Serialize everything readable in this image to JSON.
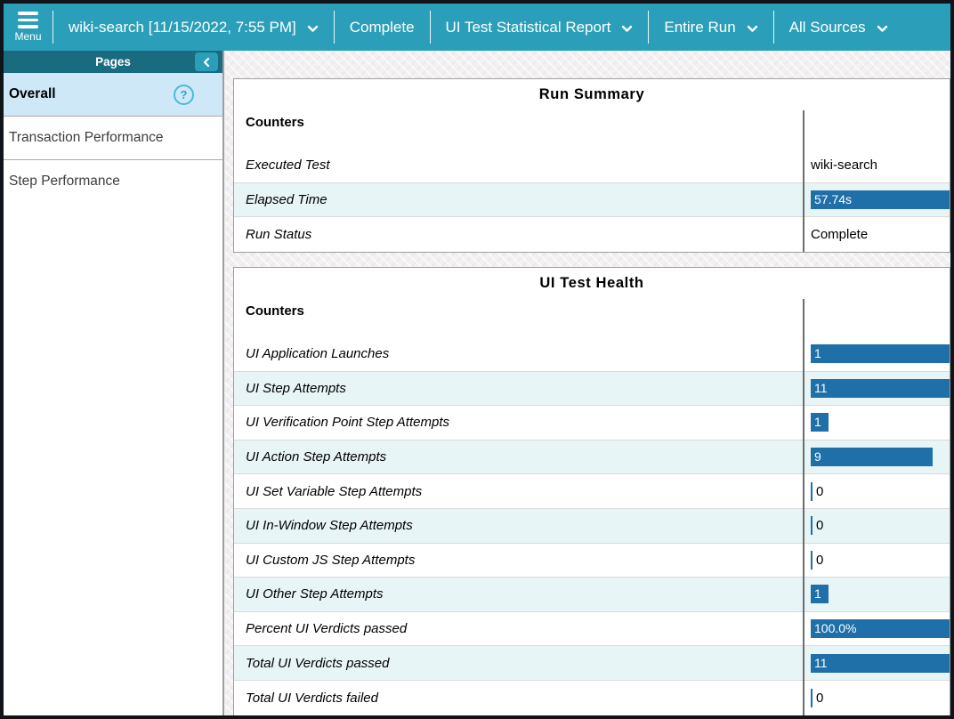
{
  "topbar": {
    "menu_label": "Menu",
    "items": [
      {
        "name": "run-selector-dropdown",
        "label": "wiki-search [11/15/2022, 7:55 PM]",
        "dropdown": true
      },
      {
        "name": "run-status-label",
        "label": "Complete",
        "dropdown": false
      },
      {
        "name": "report-type-dropdown",
        "label": "UI Test Statistical Report",
        "dropdown": true
      },
      {
        "name": "scope-dropdown",
        "label": "Entire Run",
        "dropdown": true
      },
      {
        "name": "sources-dropdown",
        "label": "All Sources",
        "dropdown": true
      }
    ]
  },
  "sidebar": {
    "title": "Pages",
    "items": [
      {
        "name": "sidebar-item-overall",
        "label": "Overall",
        "selected": true,
        "help": true
      },
      {
        "name": "sidebar-item-transaction-performance",
        "label": "Transaction Performance",
        "selected": false,
        "help": false
      },
      {
        "name": "sidebar-item-step-performance",
        "label": "Step Performance",
        "selected": false,
        "help": false
      }
    ],
    "help_glyph": "?"
  },
  "panels": [
    {
      "title": "Run Summary",
      "counters_label": "Counters",
      "rows": [
        {
          "label": "Executed Test",
          "value": "wiki-search",
          "display": "text"
        },
        {
          "label": "Elapsed Time",
          "value": "57.74s",
          "display": "bar",
          "bar_pct": 100
        },
        {
          "label": "Run Status",
          "value": "Complete",
          "display": "text"
        }
      ]
    },
    {
      "title": "UI Test Health",
      "counters_label": "Counters",
      "rows": [
        {
          "label": "UI Application Launches",
          "value": "1",
          "display": "bar",
          "bar_pct": 100
        },
        {
          "label": "UI Step Attempts",
          "value": "11",
          "display": "bar",
          "bar_pct": 100
        },
        {
          "label": "UI Verification Point Step Attempts",
          "value": "1",
          "display": "bar",
          "bar_pct": 13
        },
        {
          "label": "UI Action Step Attempts",
          "value": "9",
          "display": "bar",
          "bar_pct": 88
        },
        {
          "label": "UI Set Variable Step Attempts",
          "value": "0",
          "display": "zero"
        },
        {
          "label": "UI In-Window Step Attempts",
          "value": "0",
          "display": "zero"
        },
        {
          "label": "UI Custom JS Step Attempts",
          "value": "0",
          "display": "zero"
        },
        {
          "label": "UI Other Step Attempts",
          "value": "1",
          "display": "bar",
          "bar_pct": 13
        },
        {
          "label": "Percent UI Verdicts passed",
          "value": "100.0%",
          "display": "bar",
          "bar_pct": 100
        },
        {
          "label": "Total UI Verdicts passed",
          "value": "11",
          "display": "bar",
          "bar_pct": 100
        },
        {
          "label": "Total UI Verdicts failed",
          "value": "0",
          "display": "zero"
        }
      ]
    }
  ],
  "colors": {
    "topbar_teal": "#2b9fba",
    "pages_header_teal": "#1a6b80",
    "selected_item_blue": "#cfe8f8",
    "bar_blue": "#1f6fa8",
    "row_tint": "#e8f5f6"
  }
}
